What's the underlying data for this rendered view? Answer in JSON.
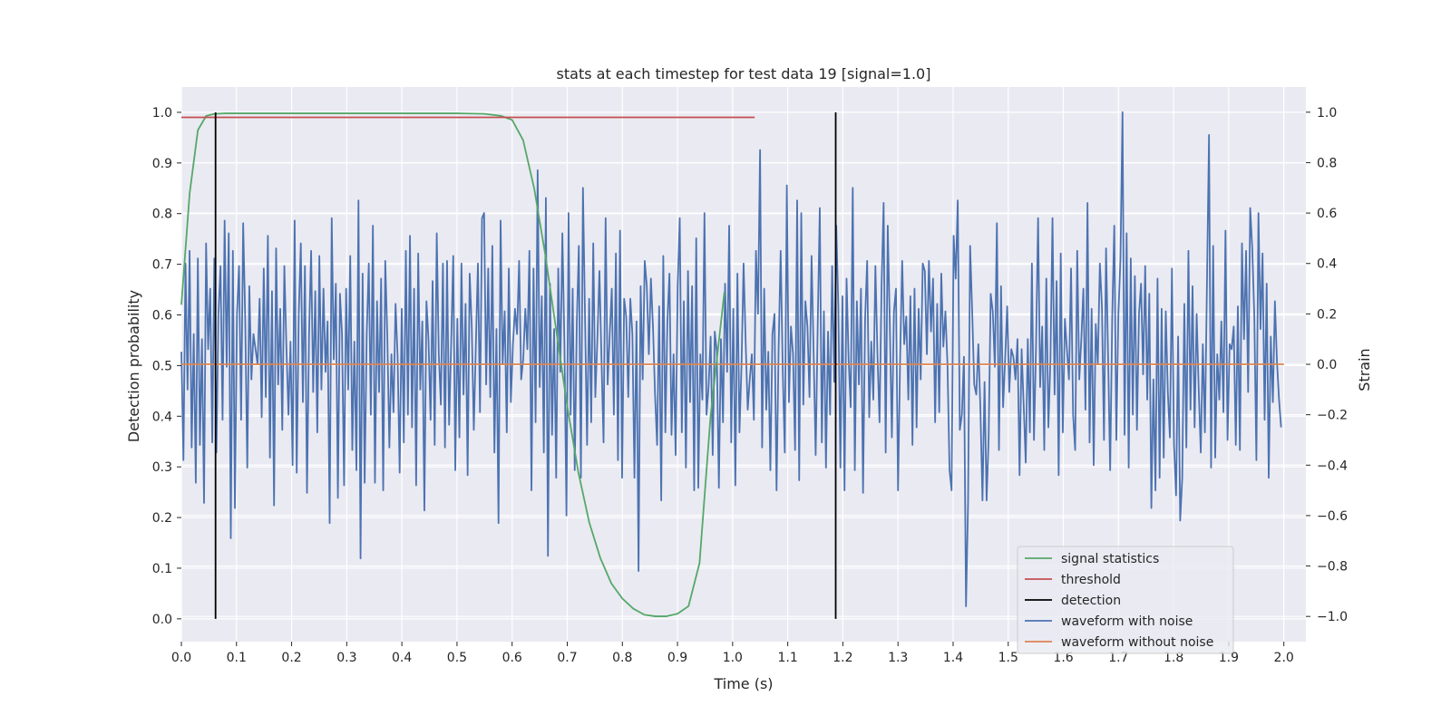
{
  "chart_data": {
    "type": "line",
    "title": "stats at each timestep for test data 19 [signal=1.0]",
    "xlabel": "Time (s)",
    "ylabel": "Detection probability",
    "y2label": "Strain",
    "xlim": [
      0.0,
      2.04
    ],
    "ylim": [
      -0.045,
      1.05
    ],
    "y2lim": [
      -1.1,
      1.1
    ],
    "xticks": [
      "0.0",
      "0.1",
      "0.2",
      "0.3",
      "0.4",
      "0.5",
      "0.6",
      "0.7",
      "0.8",
      "0.9",
      "1.0",
      "1.1",
      "1.2",
      "1.3",
      "1.4",
      "1.5",
      "1.6",
      "1.7",
      "1.8",
      "1.9",
      "2.0"
    ],
    "yticks": [
      "0.0",
      "0.1",
      "0.2",
      "0.3",
      "0.4",
      "0.5",
      "0.6",
      "0.7",
      "0.8",
      "0.9",
      "1.0"
    ],
    "y2ticks": [
      "−1.0",
      "−0.8",
      "−0.6",
      "−0.4",
      "−0.2",
      "0.0",
      "0.2",
      "0.4",
      "0.6",
      "0.8",
      "1.0"
    ],
    "grid": true,
    "legend_position": "lower-right",
    "colors": {
      "signal": "#55a868",
      "threshold": "#c44e52",
      "detection": "#000000",
      "noisy": "#4c72b0",
      "clean": "#dd8452",
      "plot_bg": "#eaeaf2",
      "grid": "#ffffff"
    },
    "series": [
      {
        "name": "signal statistics",
        "axis": "left",
        "x": [
          0.0,
          0.015,
          0.03,
          0.045,
          0.06,
          0.08,
          0.1,
          0.2,
          0.3,
          0.4,
          0.5,
          0.55,
          0.58,
          0.6,
          0.62,
          0.64,
          0.66,
          0.68,
          0.7,
          0.72,
          0.74,
          0.76,
          0.78,
          0.8,
          0.82,
          0.84,
          0.86,
          0.88,
          0.9,
          0.92,
          0.94,
          0.96,
          0.985
        ],
        "y": [
          0.62,
          0.84,
          0.965,
          0.993,
          0.997,
          0.998,
          0.998,
          0.998,
          0.998,
          0.998,
          0.998,
          0.997,
          0.993,
          0.985,
          0.945,
          0.85,
          0.72,
          0.57,
          0.42,
          0.29,
          0.19,
          0.12,
          0.07,
          0.04,
          0.02,
          0.008,
          0.005,
          0.005,
          0.01,
          0.025,
          0.11,
          0.4,
          0.645
        ]
      },
      {
        "name": "threshold",
        "axis": "left",
        "x": [
          0.0,
          1.04
        ],
        "y": [
          0.99,
          0.99
        ]
      },
      {
        "name": "detection",
        "axis": "left",
        "x": [
          0.062,
          1.187
        ],
        "y": [
          0.0,
          1.0
        ]
      },
      {
        "name": "waveform with noise",
        "axis": "right",
        "x_start": 0.0,
        "x_end": 1.995,
        "y": [
          0.05,
          -0.38,
          0.4,
          -0.1,
          0.45,
          -0.33,
          0.12,
          -0.47,
          0.42,
          -0.32,
          0.1,
          -0.55,
          0.48,
          0.06,
          0.3,
          -0.31,
          0.42,
          -0.35,
          0.2,
          0.39,
          -0.22,
          0.57,
          -0.01,
          0.52,
          -0.69,
          0.45,
          -0.57,
          0.2,
          0.39,
          -0.22,
          0.56,
          0.18,
          -0.41,
          0.31,
          -0.06,
          0.12,
          0.06,
          0.0,
          0.26,
          -0.21,
          0.38,
          -0.13,
          0.51,
          -0.37,
          0.29,
          -0.56,
          0.46,
          -0.08,
          0.22,
          -0.26,
          0.39,
          0.07,
          -0.2,
          0.09,
          -0.4,
          0.57,
          -0.43,
          0.2,
          0.48,
          -0.15,
          0.39,
          -0.51,
          0.12,
          0.45,
          -0.11,
          0.29,
          -0.27,
          0.43,
          -0.1,
          0.3,
          -0.03,
          0.17,
          -0.63,
          0.58,
          0.02,
          0.32,
          -0.53,
          0.28,
          0.12,
          -0.48,
          0.3,
          -0.1,
          0.43,
          -0.34,
          0.09,
          -0.42,
          0.65,
          -0.77,
          0.36,
          -0.47,
          0.12,
          0.4,
          -0.2,
          0.55,
          -0.47,
          0.25,
          -0.11,
          0.34,
          -0.5,
          0.41,
          0.11,
          -0.33,
          0.04,
          -0.19,
          0.24,
          0.03,
          -0.43,
          0.22,
          -0.31,
          0.45,
          -0.2,
          0.51,
          -0.25,
          0.3,
          -0.48,
          0.44,
          -0.1,
          0.17,
          -0.58,
          0.25,
          0.1,
          -0.22,
          0.33,
          -0.32,
          0.52,
          0.04,
          -0.16,
          0.4,
          -0.33,
          0.41,
          -0.24,
          0.08,
          0.43,
          -0.42,
          0.18,
          -0.29,
          0.4,
          -0.12,
          0.24,
          -0.44,
          0.36,
          0.15,
          -0.26,
          0.08,
          0.4,
          -0.19,
          0.58,
          0.6,
          -0.08,
          0.38,
          -0.13,
          0.47,
          -0.35,
          0.14,
          -0.63,
          0.57,
          0.0,
          0.21,
          -0.27,
          0.38,
          -0.15,
          0.08,
          0.22,
          0.12,
          0.41,
          -0.06,
          0.02,
          0.22,
          0.06,
          0.45,
          -0.5,
          0.38,
          -0.23,
          0.77,
          -0.09,
          0.27,
          -0.35,
          0.66,
          -0.76,
          0.32,
          -0.28,
          0.14,
          -0.45,
          0.38,
          -0.03,
          0.52,
          0.08,
          -0.6,
          0.6,
          -0.2,
          0.3,
          -0.42,
          0.16,
          0.47,
          -0.45,
          0.7,
          0.19,
          -0.32,
          0.26,
          -0.23,
          0.48,
          -0.13,
          0.1,
          0.37,
          0.02,
          -0.31,
          0.58,
          -0.08,
          0.12,
          0.3,
          -0.2,
          0.44,
          -0.38,
          0.53,
          -0.45,
          0.26,
          0.19,
          -0.13,
          0.26,
          0.12,
          -0.45,
          0.17,
          -0.82,
          0.31,
          -0.06,
          0.41,
          0.31,
          0.04,
          0.34,
          0.15,
          -0.12,
          -0.32,
          0.23,
          -0.54,
          0.43,
          -0.27,
          0.17,
          0.36,
          -0.28,
          0.04,
          -0.36,
          0.31,
          0.58,
          -0.27,
          0.25,
          -0.41,
          0.37,
          -0.15,
          0.31,
          -0.5,
          0.5,
          -0.49,
          0.04,
          -0.14,
          0.6,
          -0.2,
          -0.09,
          0.11,
          -0.36,
          0.13,
          0.05,
          -0.49,
          0.1,
          -0.23,
          0.32,
          -0.03,
          0.55,
          -0.31,
          0.22,
          -0.48,
          0.36,
          -0.27,
          0.0,
          0.4,
          0.09,
          -0.18,
          -0.06,
          0.04,
          -0.22,
          0.45,
          0.2,
          0.85,
          -0.33,
          0.3,
          -0.18,
          0.05,
          -0.42,
          0.12,
          0.2,
          -0.5,
          0.06,
          0.45,
          -0.02,
          -0.35,
          0.71,
          -0.15,
          0.15,
          0.04,
          -0.34,
          0.65,
          -0.46,
          0.6,
          -0.16,
          0.25,
          0.15,
          -0.13,
          0.43,
          0.05,
          -0.36,
          0.16,
          0.62,
          -0.31,
          0.21,
          -0.41,
          0.13,
          -0.2,
          0.39,
          -0.07,
          0.55,
          0.23,
          -0.41,
          0.27,
          -0.5,
          0.34,
          0.02,
          -0.17,
          0.7,
          -0.42,
          0.25,
          -0.08,
          0.3,
          -0.51,
          0.18,
          0.41,
          -0.21,
          0.09,
          -0.14,
          0.39,
          0.04,
          -0.23,
          0.31,
          0.64,
          -0.35,
          0.55,
          0.16,
          -0.29,
          0.21,
          0.3,
          -0.5,
          0.02,
          0.41,
          0.08,
          0.19,
          -0.14,
          0.27,
          -0.32,
          0.3,
          -0.25,
          0.22,
          -0.06,
          0.4,
          0.37,
          0.04,
          0.41,
          0.13,
          0.34,
          -0.23,
          0.24,
          -0.19,
          0.36,
          0.07,
          0.21,
          0.0,
          -0.42,
          -0.5,
          0.51,
          0.34,
          0.65,
          -0.26,
          -0.2,
          0.03,
          -0.96,
          -0.55,
          0.47,
          0.21,
          -0.08,
          -0.12,
          0.08,
          -0.18,
          -0.54,
          -0.07,
          -0.54,
          -0.29,
          0.28,
          0.21,
          -0.01,
          0.56,
          -0.34,
          0.31,
          -0.17,
          0.02,
          0.23,
          -0.11,
          0.06,
          0.03,
          -0.06,
          0.1,
          -0.44,
          0.06,
          -0.16,
          -0.39,
          0.1,
          -0.27,
          0.4,
          -0.3,
          0.07,
          0.58,
          -0.09,
          0.15,
          -0.34,
          0.34,
          -0.25,
          0.02,
          0.58,
          -0.12,
          0.33,
          -0.44,
          0.44,
          -0.27,
          0.18,
          0.06,
          -0.06,
          0.38,
          -0.2,
          -0.34,
          0.45,
          -0.06,
          0.1,
          0.3,
          -0.18,
          0.64,
          -0.31,
          0.22,
          -0.4,
          0.16,
          0.0,
          0.4,
          0.23,
          -0.3,
          0.46,
          0.03,
          -0.42,
          0.19,
          0.55,
          -0.3,
          0.2,
          0.42,
          1.0,
          -0.28,
          0.52,
          -0.41,
          0.42,
          -0.2,
          0.35,
          -0.26,
          0.2,
          0.32,
          -0.04,
          0.39,
          -0.14,
          0.28,
          -0.57,
          -0.06,
          -0.5,
          0.34,
          -0.45,
          0.22,
          -0.37,
          0.21,
          -0.11,
          -0.29,
          0.38,
          -0.32,
          -0.52,
          0.11,
          -0.62,
          -0.45,
          0.24,
          -0.33,
          0.45,
          -0.18,
          0.31,
          -0.25,
          0.2,
          -0.1,
          -0.35,
          0.08,
          -0.27,
          0.32,
          0.91,
          -0.41,
          0.47,
          -0.37,
          0.04,
          -0.14,
          0.17,
          -0.19,
          0.53,
          -0.3,
          0.08,
          0.06,
          0.15,
          -0.32,
          0.23,
          -0.34,
          0.48,
          0.1,
          0.45,
          -0.11,
          0.62,
          0.46,
          0.19,
          -0.38,
          0.6,
          0.14,
          0.44,
          -0.22,
          0.32,
          -0.45,
          0.11,
          -0.15,
          0.25,
          0.01,
          -0.14,
          -0.25
        ]
      },
      {
        "name": "waveform without noise",
        "axis": "right",
        "x": [
          0.0,
          2.0
        ],
        "y": [
          0.0,
          0.0
        ]
      }
    ]
  }
}
